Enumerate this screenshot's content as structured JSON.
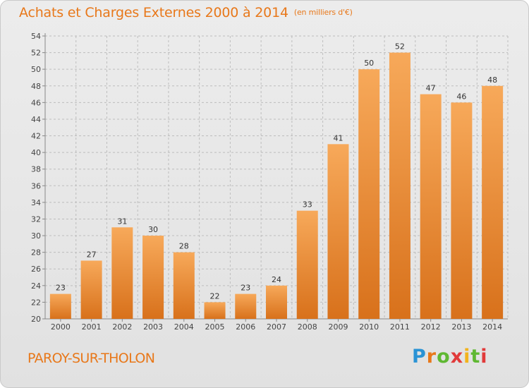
{
  "header": {
    "title": "Achats et Charges Externes 2000 à 2014",
    "unit": "(en milliers d'€)"
  },
  "footer": {
    "commune": "PAROY-SUR-THOLON",
    "logo_letters": [
      "P",
      "r",
      "o",
      "x",
      "i",
      "t",
      "i"
    ]
  },
  "colors": {
    "accent": "#e8781a",
    "bar_light": "#f7a95a",
    "bar_dark": "#d8711b",
    "grid": "#bdbdbd",
    "background": "#e6e6e6"
  },
  "chart_data": {
    "type": "bar",
    "title": "Achats et Charges Externes 2000 à 2014",
    "unit": "(en milliers d'€)",
    "xlabel": "",
    "ylabel": "",
    "categories": [
      "2000",
      "2001",
      "2002",
      "2003",
      "2004",
      "2005",
      "2006",
      "2007",
      "2008",
      "2009",
      "2010",
      "2011",
      "2012",
      "2013",
      "2014"
    ],
    "values": [
      23,
      27,
      31,
      30,
      28,
      22,
      23,
      24,
      33,
      41,
      50,
      52,
      47,
      46,
      48
    ],
    "ylim": [
      20,
      54
    ],
    "yticks": [
      20,
      22,
      24,
      26,
      28,
      30,
      32,
      34,
      36,
      38,
      40,
      42,
      44,
      46,
      48,
      50,
      52,
      54
    ],
    "grid": true,
    "data_labels": true,
    "legend": "none"
  }
}
